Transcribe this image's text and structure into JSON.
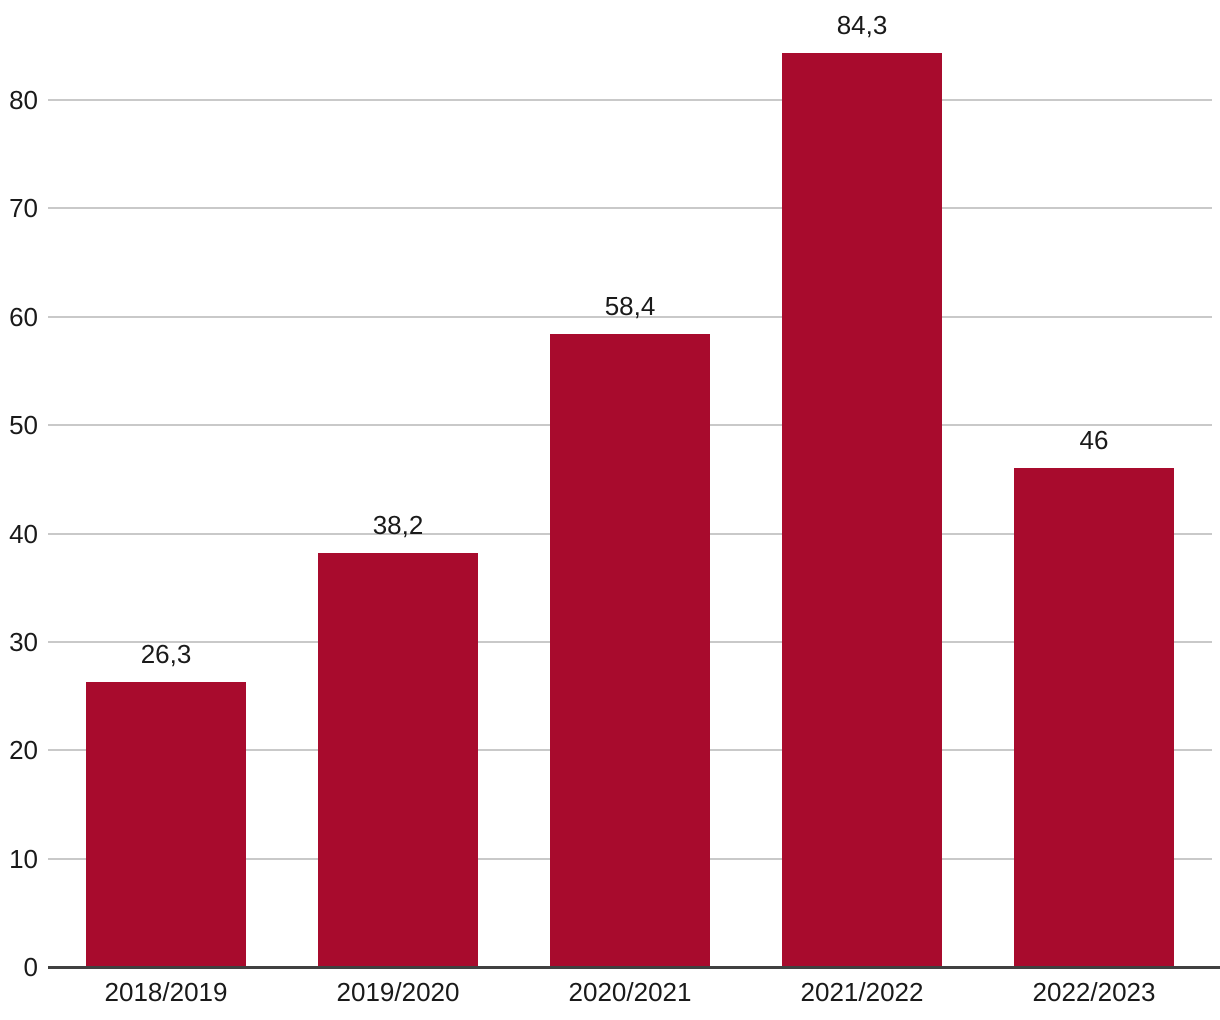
{
  "chart_data": {
    "type": "bar",
    "categories": [
      "2018/2019",
      "2019/2020",
      "2020/2021",
      "2021/2022",
      "2022/2023"
    ],
    "values": [
      26.3,
      38.2,
      58.4,
      84.3,
      46
    ],
    "value_labels": [
      "26,3",
      "38,2",
      "58,4",
      "84,3",
      "46"
    ],
    "title": "",
    "xlabel": "",
    "ylabel": "",
    "ylim": [
      0,
      90
    ],
    "yticks": [
      0,
      10,
      20,
      30,
      40,
      50,
      60,
      70,
      80
    ],
    "grid": true,
    "legend": false,
    "decimal_separator": ",",
    "colors": {
      "bar": "#a80b2d",
      "gridline": "#c9c9c9",
      "axis": "#404040",
      "text": "#1a1a1a",
      "background": "#ffffff"
    }
  }
}
